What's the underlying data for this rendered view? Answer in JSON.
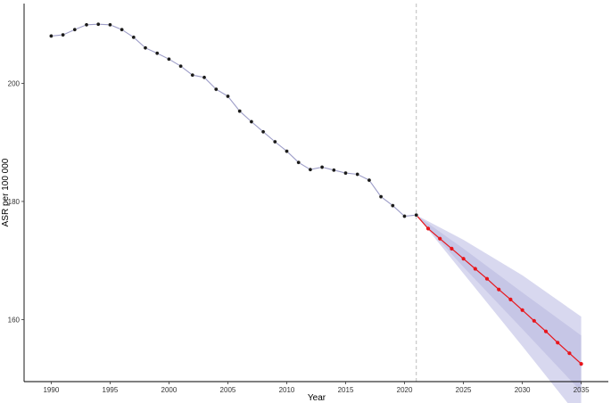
{
  "chart_data": {
    "type": "line",
    "title": "",
    "xlabel": "Year",
    "ylabel": "ASR per 100 000",
    "xlim": [
      1987.7,
      2037.3
    ],
    "ylim": [
      149.5,
      213.5
    ],
    "x_ticks": [
      1990,
      1995,
      2000,
      2005,
      2010,
      2015,
      2020,
      2025,
      2030,
      2035
    ],
    "y_ticks": [
      160,
      180,
      200
    ],
    "grid": false,
    "legend": "none",
    "vline_x": 2021,
    "colors": {
      "observed_line": "#9d9dc8",
      "observed_point": "#1a1a1a",
      "projected": "#e8151b",
      "band_outer": "#d8d8ef",
      "band_inner": "#c6c6e6",
      "vline": "#b5b5b5"
    },
    "observed": {
      "x": [
        1990,
        1991,
        1992,
        1993,
        1994,
        1995,
        1996,
        1997,
        1998,
        1999,
        2000,
        2001,
        2002,
        2003,
        2004,
        2005,
        2006,
        2007,
        2008,
        2009,
        2010,
        2011,
        2012,
        2013,
        2014,
        2015,
        2016,
        2017,
        2018,
        2019,
        2020,
        2021
      ],
      "y": [
        208.0,
        208.2,
        209.1,
        209.9,
        210.0,
        209.9,
        209.1,
        207.8,
        206.0,
        205.1,
        204.1,
        202.9,
        201.4,
        201.0,
        199.0,
        197.8,
        195.3,
        193.5,
        191.8,
        190.1,
        188.5,
        186.6,
        185.4,
        185.8,
        185.3,
        184.8,
        184.6,
        183.6,
        180.8,
        179.3,
        177.5,
        177.7
      ]
    },
    "projected": {
      "x": [
        2021,
        2022,
        2023,
        2024,
        2025,
        2026,
        2027,
        2028,
        2029,
        2030,
        2031,
        2032,
        2033,
        2034,
        2035
      ],
      "y": [
        177.7,
        175.4,
        173.7,
        172.0,
        170.3,
        168.6,
        166.9,
        165.1,
        163.4,
        161.6,
        159.8,
        158.0,
        156.1,
        154.3,
        152.5
      ]
    },
    "band_outer": {
      "x": [
        2021,
        2025,
        2030,
        2035
      ],
      "upper": [
        177.7,
        173.5,
        167.5,
        160.5
      ],
      "lower": [
        177.7,
        167.8,
        155.5,
        143.0
      ]
    },
    "band_inner": {
      "x": [
        2021,
        2025,
        2030,
        2035
      ],
      "upper": [
        177.7,
        172.0,
        164.6,
        157.3
      ],
      "lower": [
        177.7,
        168.9,
        158.4,
        147.8
      ]
    }
  }
}
